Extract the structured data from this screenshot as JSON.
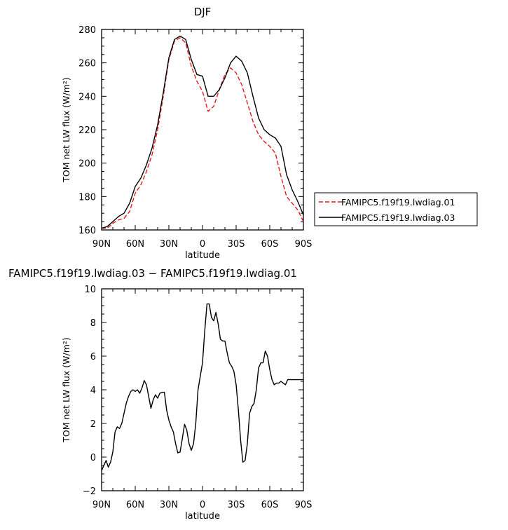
{
  "chart_data": [
    {
      "type": "line",
      "title": "DJF",
      "xlabel": "latitude",
      "ylabel": "TOM net LW flux (W/m²)",
      "xlim": [
        90,
        -90
      ],
      "ylim": [
        160,
        280
      ],
      "x_ticks": [
        {
          "value": 90,
          "label": "90N"
        },
        {
          "value": 60,
          "label": "60N"
        },
        {
          "value": 30,
          "label": "30N"
        },
        {
          "value": 0,
          "label": "0"
        },
        {
          "value": -30,
          "label": "30S"
        },
        {
          "value": -60,
          "label": "60S"
        },
        {
          "value": -90,
          "label": "90S"
        }
      ],
      "y_ticks": [
        160,
        180,
        200,
        220,
        240,
        260,
        280
      ],
      "grid": false,
      "legend": "right",
      "series": [
        {
          "name": "FAMIPC5.f19f19.lwdiag.01",
          "color": "#e41a1c",
          "dash": "dashed",
          "x": [
            90,
            85,
            80,
            75,
            70,
            65,
            60,
            55,
            50,
            45,
            40,
            35,
            30,
            25,
            20,
            15,
            10,
            5,
            0,
            -5,
            -10,
            -15,
            -20,
            -25,
            -30,
            -35,
            -40,
            -45,
            -50,
            -55,
            -60,
            -65,
            -70,
            -75,
            -80,
            -85,
            -90
          ],
          "values": [
            161,
            161,
            164,
            166,
            167,
            171,
            182,
            187,
            195,
            205,
            220,
            240,
            262,
            273,
            275,
            272,
            258,
            249,
            243,
            231,
            234,
            244,
            253,
            257,
            254,
            247,
            236,
            225,
            217,
            213,
            210,
            206,
            192,
            180,
            176,
            172,
            165
          ]
        },
        {
          "name": "FAMIPC5.f19f19.lwdiag.03",
          "color": "#000000",
          "dash": "solid",
          "x": [
            90,
            85,
            80,
            75,
            70,
            65,
            60,
            55,
            50,
            45,
            40,
            35,
            30,
            25,
            20,
            15,
            10,
            5,
            0,
            -5,
            -10,
            -15,
            -20,
            -25,
            -30,
            -35,
            -40,
            -45,
            -50,
            -55,
            -60,
            -65,
            -70,
            -75,
            -80,
            -85,
            -90
          ],
          "values": [
            161,
            162,
            165,
            168,
            170,
            176,
            186,
            191,
            199,
            209,
            223,
            242,
            263,
            274,
            276,
            274,
            262,
            253,
            252,
            240,
            240,
            244,
            251,
            260,
            264,
            261,
            254,
            240,
            227,
            220,
            217,
            215,
            210,
            193,
            184,
            177,
            169
          ]
        }
      ]
    },
    {
      "type": "line",
      "title": "FAMIPC5.f19f19.lwdiag.03 − FAMIPC5.f19f19.lwdiag.01",
      "xlabel": "latitude",
      "ylabel": "TOM net LW flux (W/m²)",
      "xlim": [
        90,
        -90
      ],
      "ylim": [
        -2,
        10
      ],
      "x_ticks": [
        {
          "value": 90,
          "label": "90N"
        },
        {
          "value": 60,
          "label": "60N"
        },
        {
          "value": 30,
          "label": "30N"
        },
        {
          "value": 0,
          "label": "0"
        },
        {
          "value": -30,
          "label": "30S"
        },
        {
          "value": -60,
          "label": "60S"
        },
        {
          "value": -90,
          "label": "90S"
        }
      ],
      "y_ticks": [
        -2,
        0,
        2,
        4,
        6,
        8,
        10
      ],
      "grid": false,
      "series": [
        {
          "name": "",
          "color": "#000000",
          "dash": "solid",
          "x": [
            90,
            88,
            86,
            84,
            82,
            80,
            78,
            76,
            74,
            72,
            70,
            68,
            66,
            64,
            62,
            60,
            58,
            56,
            54,
            52,
            50,
            48,
            46,
            44,
            42,
            40,
            38,
            36,
            34,
            32,
            30,
            28,
            26,
            24,
            22,
            20,
            18,
            16,
            14,
            12,
            10,
            8,
            6,
            4,
            2,
            0,
            -2,
            -4,
            -6,
            -8,
            -10,
            -12,
            -14,
            -16,
            -18,
            -20,
            -22,
            -24,
            -26,
            -28,
            -30,
            -32,
            -34,
            -36,
            -38,
            -40,
            -42,
            -44,
            -46,
            -48,
            -50,
            -52,
            -54,
            -56,
            -58,
            -60,
            -62,
            -64,
            -66,
            -68,
            -70,
            -72,
            -74,
            -76,
            -78,
            -80,
            -82,
            -84,
            -86,
            -88,
            -90
          ],
          "values": [
            -0.8,
            -0.5,
            -0.2,
            -0.6,
            -0.3,
            0.3,
            1.5,
            1.8,
            1.7,
            2.0,
            2.6,
            3.2,
            3.6,
            3.9,
            4.0,
            3.9,
            4.0,
            3.8,
            4.1,
            4.55,
            4.3,
            3.6,
            2.9,
            3.4,
            3.7,
            3.5,
            3.8,
            3.85,
            3.85,
            2.8,
            2.2,
            1.8,
            1.5,
            0.8,
            0.25,
            0.3,
            1.1,
            1.95,
            1.6,
            0.8,
            0.4,
            0.8,
            2.0,
            4.0,
            4.8,
            5.6,
            7.5,
            9.1,
            9.1,
            8.3,
            8.1,
            8.6,
            7.9,
            7.0,
            6.9,
            6.9,
            6.2,
            5.6,
            5.4,
            5.1,
            4.3,
            2.8,
            1.0,
            -0.3,
            -0.2,
            0.8,
            2.6,
            3.0,
            3.2,
            4.0,
            5.3,
            5.6,
            5.6,
            6.3,
            6.0,
            5.2,
            4.6,
            4.3,
            4.4,
            4.4,
            4.5,
            4.4,
            4.3,
            4.6,
            4.6,
            4.6,
            4.6,
            4.6,
            4.6,
            4.6,
            4.6
          ]
        }
      ]
    }
  ]
}
